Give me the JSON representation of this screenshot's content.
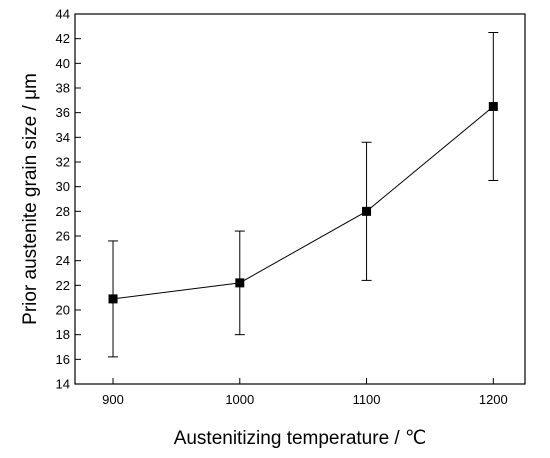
{
  "chart_data": {
    "type": "scatter",
    "title": "",
    "xlabel": "Austenitizing temperature / ℃",
    "ylabel": "Prior austenite grain size / μm",
    "xlim": [
      870,
      1225
    ],
    "ylim": [
      14,
      44
    ],
    "xticks": [
      900,
      1000,
      1100,
      1200
    ],
    "yticks": [
      14,
      16,
      18,
      20,
      22,
      24,
      26,
      28,
      30,
      32,
      34,
      36,
      38,
      40,
      42,
      44
    ],
    "grid": false,
    "legend": "none",
    "series": [
      {
        "x": [
          900,
          1000,
          1100,
          1200
        ],
        "y": [
          20.9,
          22.2,
          28.0,
          36.5
        ],
        "error_low": [
          16.2,
          18.0,
          22.4,
          30.5
        ],
        "error_high": [
          25.6,
          26.4,
          33.6,
          42.5
        ],
        "marker": "square",
        "color": "#000000",
        "connected": true
      }
    ]
  }
}
